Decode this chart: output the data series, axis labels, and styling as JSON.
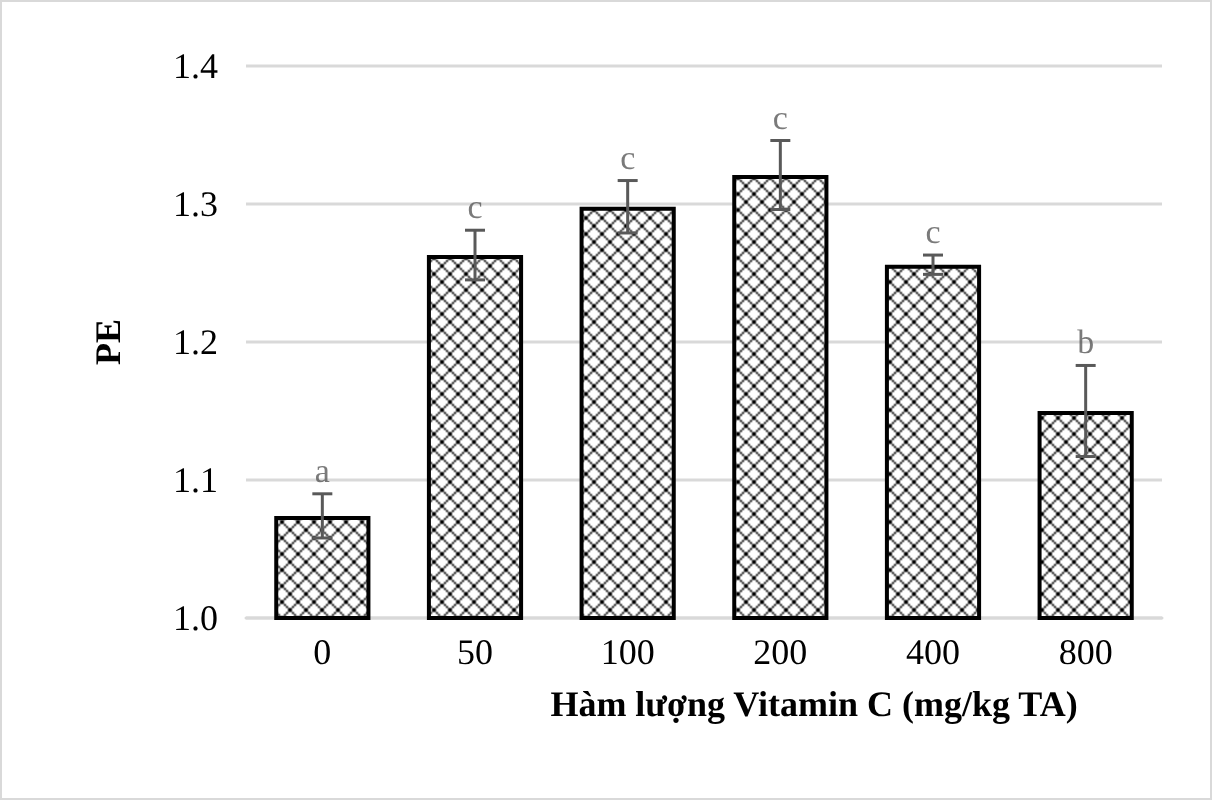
{
  "chart_data": {
    "type": "bar",
    "xlabel": "Hàm lượng Vitamin C (mg/kg TA)",
    "ylabel": "PE",
    "categories": [
      "0",
      "50",
      "100",
      "200",
      "400",
      "800"
    ],
    "values": [
      1.074,
      1.263,
      1.298,
      1.321,
      1.256,
      1.15
    ],
    "errors": [
      0.016,
      0.018,
      0.019,
      0.025,
      0.007,
      0.033
    ],
    "color": "#000000",
    "ylim": [
      1.0,
      1.4
    ],
    "yticks": [
      {
        "value": 1.0,
        "label": "1.0"
      },
      {
        "value": 1.1,
        "label": "1.1"
      },
      {
        "value": 1.2,
        "label": "1.2"
      },
      {
        "value": 1.3,
        "label": "1.3"
      },
      {
        "value": 1.4,
        "label": "1.4"
      }
    ],
    "grid": "y",
    "annotations": [
      {
        "text": "a",
        "x": "0",
        "y": 1.09
      },
      {
        "text": "c",
        "x": "50",
        "y": 1.281
      },
      {
        "text": "c",
        "x": "100",
        "y": 1.317
      },
      {
        "text": "c",
        "x": "200",
        "y": 1.346
      },
      {
        "text": "c",
        "x": "400",
        "y": 1.263
      },
      {
        "text": "b",
        "x": "800",
        "y": 1.183
      }
    ]
  }
}
